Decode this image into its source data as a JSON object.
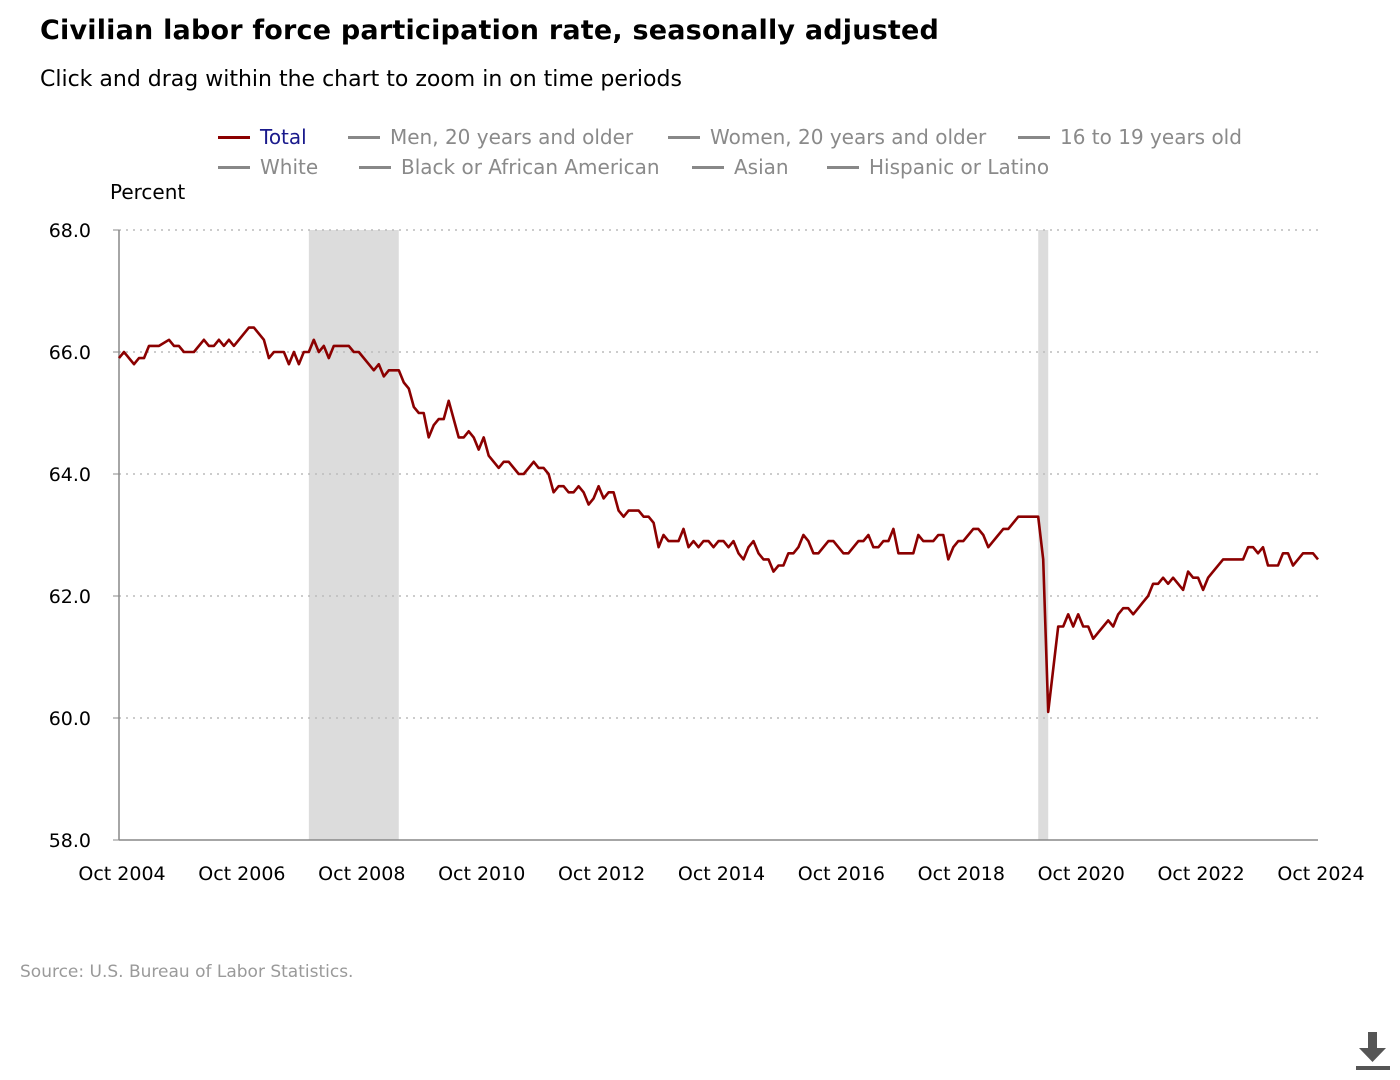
{
  "title": "Civilian labor force participation rate, seasonally adjusted",
  "subtitle": "Click and drag within the chart to zoom in on time periods",
  "legend": [
    {
      "label": "Total",
      "active": true
    },
    {
      "label": "Men, 20 years and older",
      "active": false
    },
    {
      "label": "Women, 20 years and older",
      "active": false
    },
    {
      "label": "16 to 19 years old",
      "active": false
    },
    {
      "label": "White",
      "active": false
    },
    {
      "label": "Black or African American",
      "active": false
    },
    {
      "label": "Asian",
      "active": false
    },
    {
      "label": "Hispanic or Latino",
      "active": false
    }
  ],
  "source": "Source: U.S. Bureau of Labor Statistics.",
  "download_icon": "download-icon",
  "colors": {
    "series": "#8b0000",
    "recession": "#dcdcdc",
    "grid": "#bbbbbb",
    "axis": "#888888",
    "legend_active": "#1a1a8c",
    "legend_inactive": "#8a8a8a"
  },
  "chart_data": {
    "type": "line",
    "title": "Civilian labor force participation rate, seasonally adjusted",
    "ylabel": "Percent",
    "xlabel": "",
    "ylim": [
      58.0,
      68.0
    ],
    "yticks": [
      "58.0",
      "60.0",
      "62.0",
      "64.0",
      "66.0",
      "68.0"
    ],
    "xlim": [
      "2004-10",
      "2024-10"
    ],
    "xticks": [
      "Oct 2004",
      "Oct 2006",
      "Oct 2008",
      "Oct 2010",
      "Oct 2012",
      "Oct 2014",
      "Oct 2016",
      "Oct 2018",
      "Oct 2020",
      "Oct 2022",
      "Oct 2024"
    ],
    "grid": true,
    "legend_position": "top",
    "shaded_periods": [
      {
        "start": "2007-12",
        "end": "2009-06"
      },
      {
        "start": "2020-02",
        "end": "2020-04"
      }
    ],
    "series": [
      {
        "name": "Total",
        "points": [
          [
            "2004-10",
            65.9
          ],
          [
            "2004-11",
            66.0
          ],
          [
            "2005-01",
            65.8
          ],
          [
            "2005-02",
            65.9
          ],
          [
            "2005-03",
            65.9
          ],
          [
            "2005-04",
            66.1
          ],
          [
            "2005-06",
            66.1
          ],
          [
            "2005-08",
            66.2
          ],
          [
            "2005-09",
            66.1
          ],
          [
            "2005-10",
            66.1
          ],
          [
            "2005-11",
            66.0
          ],
          [
            "2006-01",
            66.0
          ],
          [
            "2006-03",
            66.2
          ],
          [
            "2006-04",
            66.1
          ],
          [
            "2006-05",
            66.1
          ],
          [
            "2006-06",
            66.2
          ],
          [
            "2006-07",
            66.1
          ],
          [
            "2006-08",
            66.2
          ],
          [
            "2006-09",
            66.1
          ],
          [
            "2006-12",
            66.4
          ],
          [
            "2007-01",
            66.4
          ],
          [
            "2007-03",
            66.2
          ],
          [
            "2007-04",
            65.9
          ],
          [
            "2007-05",
            66.0
          ],
          [
            "2007-07",
            66.0
          ],
          [
            "2007-08",
            65.8
          ],
          [
            "2007-09",
            66.0
          ],
          [
            "2007-10",
            65.8
          ],
          [
            "2007-11",
            66.0
          ],
          [
            "2007-12",
            66.0
          ],
          [
            "2008-01",
            66.2
          ],
          [
            "2008-02",
            66.0
          ],
          [
            "2008-03",
            66.1
          ],
          [
            "2008-04",
            65.9
          ],
          [
            "2008-05",
            66.1
          ],
          [
            "2008-08",
            66.1
          ],
          [
            "2008-09",
            66.0
          ],
          [
            "2008-10",
            66.0
          ],
          [
            "2008-12",
            65.8
          ],
          [
            "2009-01",
            65.7
          ],
          [
            "2009-02",
            65.8
          ],
          [
            "2009-03",
            65.6
          ],
          [
            "2009-04",
            65.7
          ],
          [
            "2009-06",
            65.7
          ],
          [
            "2009-07",
            65.5
          ],
          [
            "2009-08",
            65.4
          ],
          [
            "2009-09",
            65.1
          ],
          [
            "2009-10",
            65.0
          ],
          [
            "2009-11",
            65.0
          ],
          [
            "2009-12",
            64.6
          ],
          [
            "2010-01",
            64.8
          ],
          [
            "2010-02",
            64.9
          ],
          [
            "2010-03",
            64.9
          ],
          [
            "2010-04",
            65.2
          ],
          [
            "2010-05",
            64.9
          ],
          [
            "2010-06",
            64.6
          ],
          [
            "2010-07",
            64.6
          ],
          [
            "2010-08",
            64.7
          ],
          [
            "2010-09",
            64.6
          ],
          [
            "2010-10",
            64.4
          ],
          [
            "2010-11",
            64.6
          ],
          [
            "2010-12",
            64.3
          ],
          [
            "2011-02",
            64.1
          ],
          [
            "2011-03",
            64.2
          ],
          [
            "2011-04",
            64.2
          ],
          [
            "2011-06",
            64.0
          ],
          [
            "2011-07",
            64.0
          ],
          [
            "2011-09",
            64.2
          ],
          [
            "2011-10",
            64.1
          ],
          [
            "2011-11",
            64.1
          ],
          [
            "2011-12",
            64.0
          ],
          [
            "2012-01",
            63.7
          ],
          [
            "2012-02",
            63.8
          ],
          [
            "2012-03",
            63.8
          ],
          [
            "2012-04",
            63.7
          ],
          [
            "2012-05",
            63.7
          ],
          [
            "2012-06",
            63.8
          ],
          [
            "2012-07",
            63.7
          ],
          [
            "2012-08",
            63.5
          ],
          [
            "2012-09",
            63.6
          ],
          [
            "2012-10",
            63.8
          ],
          [
            "2012-11",
            63.6
          ],
          [
            "2012-12",
            63.7
          ],
          [
            "2013-01",
            63.7
          ],
          [
            "2013-02",
            63.4
          ],
          [
            "2013-03",
            63.3
          ],
          [
            "2013-04",
            63.4
          ],
          [
            "2013-06",
            63.4
          ],
          [
            "2013-07",
            63.3
          ],
          [
            "2013-08",
            63.3
          ],
          [
            "2013-09",
            63.2
          ],
          [
            "2013-10",
            62.8
          ],
          [
            "2013-11",
            63.0
          ],
          [
            "2013-12",
            62.9
          ],
          [
            "2014-02",
            62.9
          ],
          [
            "2014-03",
            63.1
          ],
          [
            "2014-04",
            62.8
          ],
          [
            "2014-05",
            62.9
          ],
          [
            "2014-06",
            62.8
          ],
          [
            "2014-07",
            62.9
          ],
          [
            "2014-08",
            62.9
          ],
          [
            "2014-09",
            62.8
          ],
          [
            "2014-10",
            62.9
          ],
          [
            "2014-11",
            62.9
          ],
          [
            "2014-12",
            62.8
          ],
          [
            "2015-01",
            62.9
          ],
          [
            "2015-02",
            62.7
          ],
          [
            "2015-03",
            62.6
          ],
          [
            "2015-04",
            62.8
          ],
          [
            "2015-05",
            62.9
          ],
          [
            "2015-06",
            62.7
          ],
          [
            "2015-07",
            62.6
          ],
          [
            "2015-08",
            62.6
          ],
          [
            "2015-09",
            62.4
          ],
          [
            "2015-10",
            62.5
          ],
          [
            "2015-11",
            62.5
          ],
          [
            "2015-12",
            62.7
          ],
          [
            "2016-01",
            62.7
          ],
          [
            "2016-02",
            62.8
          ],
          [
            "2016-03",
            63.0
          ],
          [
            "2016-04",
            62.9
          ],
          [
            "2016-05",
            62.7
          ],
          [
            "2016-06",
            62.7
          ],
          [
            "2016-08",
            62.9
          ],
          [
            "2016-09",
            62.9
          ],
          [
            "2016-11",
            62.7
          ],
          [
            "2016-12",
            62.7
          ],
          [
            "2017-01",
            62.8
          ],
          [
            "2017-02",
            62.9
          ],
          [
            "2017-03",
            62.9
          ],
          [
            "2017-04",
            63.0
          ],
          [
            "2017-05",
            62.8
          ],
          [
            "2017-06",
            62.8
          ],
          [
            "2017-07",
            62.9
          ],
          [
            "2017-08",
            62.9
          ],
          [
            "2017-09",
            63.1
          ],
          [
            "2017-10",
            62.7
          ],
          [
            "2017-11",
            62.7
          ],
          [
            "2018-01",
            62.7
          ],
          [
            "2018-02",
            63.0
          ],
          [
            "2018-03",
            62.9
          ],
          [
            "2018-04",
            62.9
          ],
          [
            "2018-05",
            62.9
          ],
          [
            "2018-06",
            63.0
          ],
          [
            "2018-07",
            63.0
          ],
          [
            "2018-08",
            62.6
          ],
          [
            "2018-09",
            62.8
          ],
          [
            "2018-10",
            62.9
          ],
          [
            "2018-11",
            62.9
          ],
          [
            "2018-12",
            63.0
          ],
          [
            "2019-01",
            63.1
          ],
          [
            "2019-02",
            63.1
          ],
          [
            "2019-03",
            63.0
          ],
          [
            "2019-04",
            62.8
          ],
          [
            "2019-05",
            62.9
          ],
          [
            "2019-06",
            63.0
          ],
          [
            "2019-07",
            63.1
          ],
          [
            "2019-08",
            63.1
          ],
          [
            "2019-09",
            63.2
          ],
          [
            "2019-10",
            63.3
          ],
          [
            "2019-11",
            63.3
          ],
          [
            "2019-12",
            63.3
          ],
          [
            "2020-01",
            63.3
          ],
          [
            "2020-02",
            63.3
          ],
          [
            "2020-03",
            62.6
          ],
          [
            "2020-04",
            60.1
          ],
          [
            "2020-05",
            60.8
          ],
          [
            "2020-06",
            61.5
          ],
          [
            "2020-07",
            61.5
          ],
          [
            "2020-08",
            61.7
          ],
          [
            "2020-09",
            61.5
          ],
          [
            "2020-10",
            61.7
          ],
          [
            "2020-11",
            61.5
          ],
          [
            "2020-12",
            61.5
          ],
          [
            "2021-01",
            61.3
          ],
          [
            "2021-02",
            61.4
          ],
          [
            "2021-03",
            61.5
          ],
          [
            "2021-04",
            61.6
          ],
          [
            "2021-05",
            61.5
          ],
          [
            "2021-06",
            61.7
          ],
          [
            "2021-07",
            61.8
          ],
          [
            "2021-08",
            61.8
          ],
          [
            "2021-09",
            61.7
          ],
          [
            "2021-10",
            61.8
          ],
          [
            "2021-11",
            61.9
          ],
          [
            "2021-12",
            62.0
          ],
          [
            "2022-01",
            62.2
          ],
          [
            "2022-02",
            62.2
          ],
          [
            "2022-03",
            62.3
          ],
          [
            "2022-04",
            62.2
          ],
          [
            "2022-05",
            62.3
          ],
          [
            "2022-06",
            62.2
          ],
          [
            "2022-07",
            62.1
          ],
          [
            "2022-08",
            62.4
          ],
          [
            "2022-09",
            62.3
          ],
          [
            "2022-10",
            62.3
          ],
          [
            "2022-11",
            62.1
          ],
          [
            "2022-12",
            62.3
          ],
          [
            "2023-01",
            62.4
          ],
          [
            "2023-03",
            62.6
          ],
          [
            "2023-07",
            62.6
          ],
          [
            "2023-08",
            62.8
          ],
          [
            "2023-09",
            62.8
          ],
          [
            "2023-10",
            62.7
          ],
          [
            "2023-11",
            62.8
          ],
          [
            "2023-12",
            62.5
          ],
          [
            "2024-02",
            62.5
          ],
          [
            "2024-03",
            62.7
          ],
          [
            "2024-04",
            62.7
          ],
          [
            "2024-05",
            62.5
          ],
          [
            "2024-06",
            62.6
          ],
          [
            "2024-07",
            62.7
          ],
          [
            "2024-09",
            62.7
          ],
          [
            "2024-10",
            62.6
          ]
        ]
      }
    ]
  }
}
